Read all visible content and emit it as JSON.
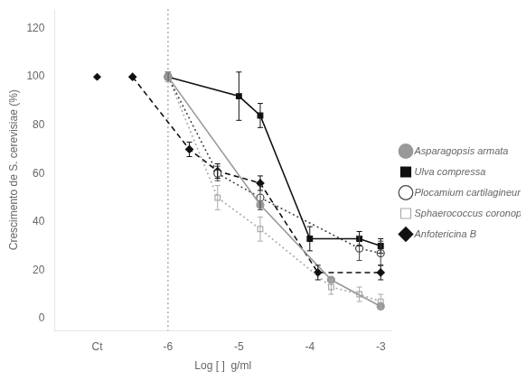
{
  "chart_data": {
    "type": "line",
    "xlabel": "Log [ ]  g/ml",
    "ylabel": "Crescimento de S. cerevisiae (%)",
    "xlim": [
      -7.6,
      -2.85
    ],
    "xticks": [
      {
        "value": -7,
        "label": "Ct"
      },
      -6,
      -5,
      -4,
      -3
    ],
    "ylim": [
      -5,
      128
    ],
    "yticks": [
      0,
      20,
      40,
      60,
      80,
      100,
      120
    ],
    "grid": false,
    "legend": "right",
    "series": [
      {
        "name": "Asparagopsis armata",
        "color": "#999999",
        "marker": "circle",
        "line_style": "solid",
        "x": [
          -6.0,
          -4.699,
          -3.699,
          -3.0
        ],
        "values": [
          100,
          47,
          16,
          5
        ]
      },
      {
        "name": "Ulva compressa",
        "color": "#111111",
        "marker": "square",
        "line_style": "solid",
        "x": [
          -6.0,
          -5.0,
          -4.699,
          -4.0,
          -3.301,
          -3.0
        ],
        "values": [
          100,
          92,
          84,
          33,
          33,
          30
        ],
        "errors": [
          2,
          10,
          5,
          5,
          3,
          3
        ]
      },
      {
        "name": "Plocamium cartilagineum",
        "color": "#444444",
        "marker": "open_circle",
        "line_style": "dotted",
        "x": [
          -6.0,
          -5.301,
          -4.699,
          -3.301,
          -3.0
        ],
        "values": [
          100,
          60,
          50,
          29,
          27
        ],
        "errors": [
          2,
          3,
          5,
          5,
          5
        ]
      },
      {
        "name": "Sphaerococcus coronopifolius",
        "color": "#aaaaaa",
        "marker": "open_square",
        "line_style": "dotted",
        "x": [
          -6.0,
          -5.301,
          -4.699,
          -3.699,
          -3.301,
          -3.0
        ],
        "values": [
          100,
          50,
          37,
          13,
          10,
          7
        ],
        "errors": [
          2,
          5,
          5,
          3,
          3,
          3
        ]
      },
      {
        "name": "Anfotericina B",
        "color": "#111111",
        "marker": "diamond",
        "line_style": "dashed",
        "x": [
          -6.5,
          -5.699,
          -5.301,
          -4.699,
          -3.886,
          -3.0
        ],
        "values": [
          100,
          70,
          61,
          56,
          19,
          19
        ],
        "errors": [
          0,
          3,
          3,
          3,
          3,
          3
        ]
      }
    ],
    "control": {
      "x": -7.0,
      "y": 100,
      "color": "#111111",
      "marker": "diamond"
    },
    "vline_x": -6.0
  }
}
